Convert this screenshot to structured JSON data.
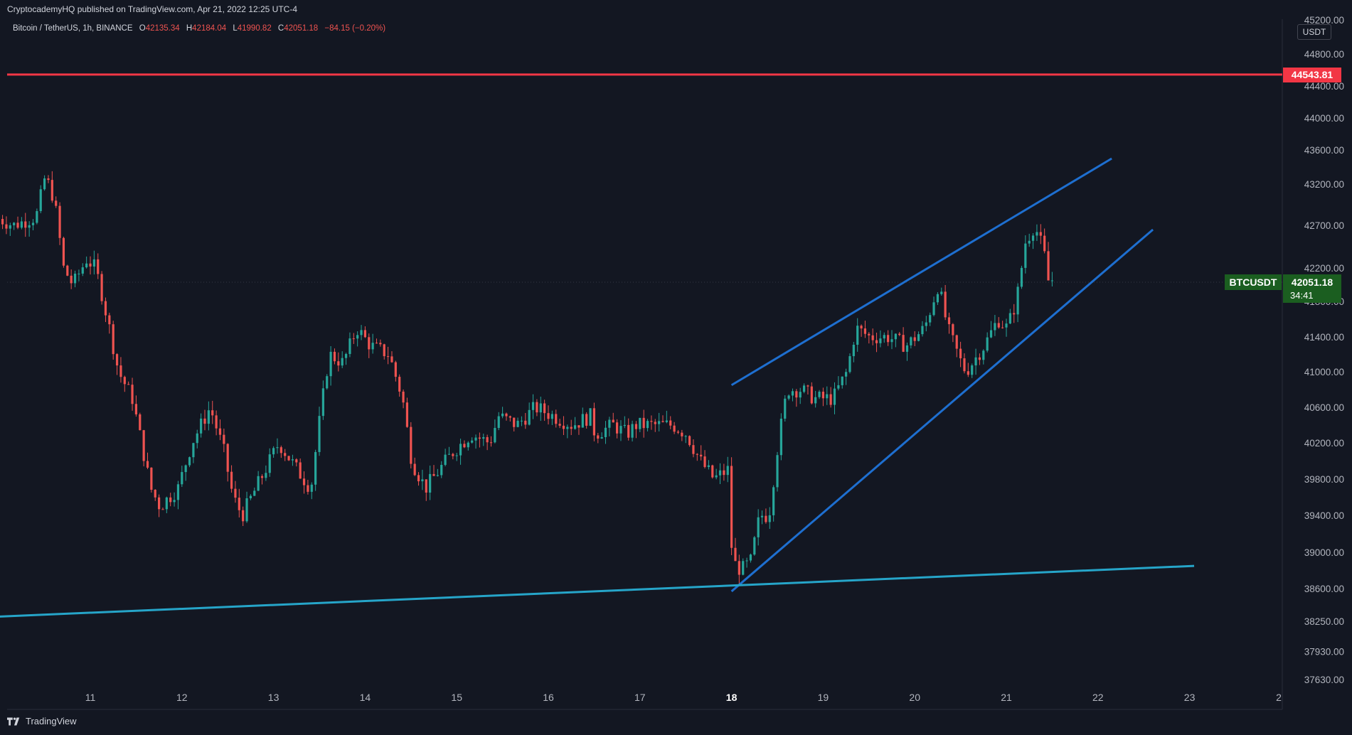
{
  "header": {
    "published_text": "CryptocademyHQ published on TradingView.com, Apr 21, 2022 12:25 UTC-4"
  },
  "legend": {
    "symbol_text": "Bitcoin / TetherUS, 1h, BINANCE",
    "open_label": "O",
    "open": "42135.34",
    "high_label": "H",
    "high": "42184.04",
    "low_label": "L",
    "low": "41990.82",
    "close_label": "C",
    "close": "42051.18",
    "change": "−84.15 (−0.20%)"
  },
  "price_axis": {
    "currency": "USDT",
    "top_partial_label": "45200.00"
  },
  "badges": {
    "resistance_value": "44543.81",
    "symbol": "BTCUSDT",
    "last_price": "42051.18",
    "countdown": "34:41"
  },
  "footer": {
    "brand": "TradingView"
  },
  "colors": {
    "background": "#131722",
    "up": "#26a69a",
    "down": "#ef5350",
    "resistance": "#f23645",
    "channel": "#1e6fd0",
    "support": "#26a5c9",
    "last_price_badge": "#1b5e20"
  },
  "chart_data": {
    "type": "candlestick",
    "interval": "1h",
    "x_axis_labels": [
      "11",
      "12",
      "13",
      "14",
      "15",
      "16",
      "17",
      "18",
      "19",
      "20",
      "21",
      "22",
      "23",
      "2"
    ],
    "y_axis_labels": [
      44800.0,
      44400.0,
      44000.0,
      43600.0,
      43200.0,
      42700.0,
      42200.0,
      41800.0,
      41400.0,
      41000.0,
      40600.0,
      40200.0,
      39800.0,
      39400.0,
      39000.0,
      38600.0,
      38250.0,
      37930.0,
      37630.0
    ],
    "ohlc_path": [
      [
        10.0,
        42800
      ],
      [
        10.2,
        42700
      ],
      [
        10.45,
        42800
      ],
      [
        10.55,
        43300
      ],
      [
        10.65,
        43000
      ],
      [
        10.75,
        42200
      ],
      [
        10.85,
        42000
      ],
      [
        11.0,
        42300
      ],
      [
        11.1,
        42200
      ],
      [
        11.25,
        41500
      ],
      [
        11.35,
        41000
      ],
      [
        11.5,
        40700
      ],
      [
        11.6,
        40200
      ],
      [
        11.7,
        39700
      ],
      [
        11.8,
        39500
      ],
      [
        12.0,
        39700
      ],
      [
        12.15,
        40200
      ],
      [
        12.35,
        40600
      ],
      [
        12.5,
        40100
      ],
      [
        12.6,
        39600
      ],
      [
        12.7,
        39400
      ],
      [
        12.9,
        39800
      ],
      [
        13.1,
        40200
      ],
      [
        13.3,
        39900
      ],
      [
        13.45,
        39700
      ],
      [
        13.55,
        40500
      ],
      [
        13.65,
        41200
      ],
      [
        13.8,
        41100
      ],
      [
        13.95,
        41500
      ],
      [
        14.1,
        41300
      ],
      [
        14.3,
        41200
      ],
      [
        14.45,
        40700
      ],
      [
        14.55,
        40000
      ],
      [
        14.7,
        39700
      ],
      [
        14.85,
        39900
      ],
      [
        15.0,
        40100
      ],
      [
        15.2,
        40300
      ],
      [
        15.4,
        40200
      ],
      [
        15.5,
        40500
      ],
      [
        15.7,
        40400
      ],
      [
        15.9,
        40600
      ],
      [
        16.1,
        40500
      ],
      [
        16.3,
        40400
      ],
      [
        16.5,
        40500
      ],
      [
        16.55,
        40300
      ],
      [
        16.75,
        40400
      ],
      [
        16.9,
        40300
      ],
      [
        17.0,
        40400
      ],
      [
        17.2,
        40400
      ],
      [
        17.4,
        40400
      ],
      [
        17.55,
        40300
      ],
      [
        17.7,
        40000
      ],
      [
        17.85,
        39800
      ],
      [
        18.0,
        39900
      ],
      [
        18.05,
        38900
      ],
      [
        18.15,
        38800
      ],
      [
        18.25,
        38900
      ],
      [
        18.35,
        39400
      ],
      [
        18.45,
        39400
      ],
      [
        18.55,
        40200
      ],
      [
        18.65,
        40800
      ],
      [
        18.8,
        40800
      ],
      [
        18.95,
        40700
      ],
      [
        19.15,
        40700
      ],
      [
        19.3,
        41000
      ],
      [
        19.4,
        41500
      ],
      [
        19.55,
        41400
      ],
      [
        19.75,
        41400
      ],
      [
        19.95,
        41300
      ],
      [
        20.15,
        41500
      ],
      [
        20.3,
        42000
      ],
      [
        20.4,
        41500
      ],
      [
        20.55,
        41100
      ],
      [
        20.6,
        41000
      ],
      [
        20.8,
        41300
      ],
      [
        20.95,
        41600
      ],
      [
        21.05,
        41500
      ],
      [
        21.15,
        41800
      ],
      [
        21.25,
        42500
      ],
      [
        21.35,
        42700
      ],
      [
        21.45,
        42400
      ],
      [
        21.5,
        42050
      ]
    ],
    "horizontal_levels": [
      {
        "kind": "resistance",
        "price": 44543.81
      }
    ],
    "trend_lines": [
      {
        "kind": "channel-upper",
        "from": [
          18.0,
          40850
        ],
        "to": [
          22.15,
          43500
        ]
      },
      {
        "kind": "channel-lower",
        "from": [
          18.0,
          38570
        ],
        "to": [
          22.6,
          42650
        ]
      },
      {
        "kind": "support",
        "from": [
          10.0,
          38300
        ],
        "to": [
          23.05,
          38850
        ]
      }
    ],
    "last_price": 42051.18
  }
}
